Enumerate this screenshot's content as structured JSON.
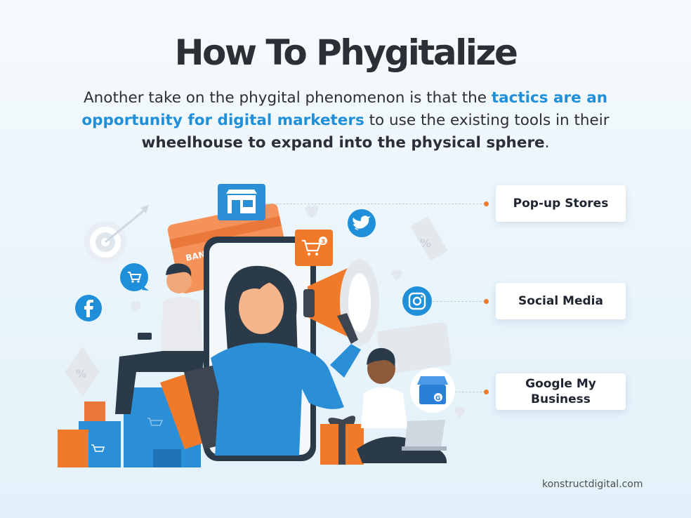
{
  "title": "How To Phygitalize",
  "subtitle": {
    "part1": "Another take on the phygital phenomenon is that the ",
    "highlight_blue": "tactics are an opportunity for digital marketers",
    "part2": " to use the existing tools in their ",
    "highlight_bold": "wheelhouse to expand into the physical sphere",
    "part3": "."
  },
  "tags": [
    {
      "label": "Pop-up Stores",
      "icon": "storefront-icon"
    },
    {
      "label": "Social Media",
      "icon": "instagram-icon"
    },
    {
      "label": "Google My Business",
      "icon": "google-my-business-icon"
    }
  ],
  "illustration": {
    "card_text": "BANK",
    "cart_badge": "3",
    "percent_symbol": "%",
    "social_icons": [
      "facebook-icon",
      "twitter-icon",
      "instagram-icon"
    ]
  },
  "footer": "konstructdigital.com",
  "colors": {
    "title": "#2b2f36",
    "accent_blue": "#1e8fd8",
    "accent_orange": "#f07a2a",
    "background": "#eaf4fb"
  }
}
